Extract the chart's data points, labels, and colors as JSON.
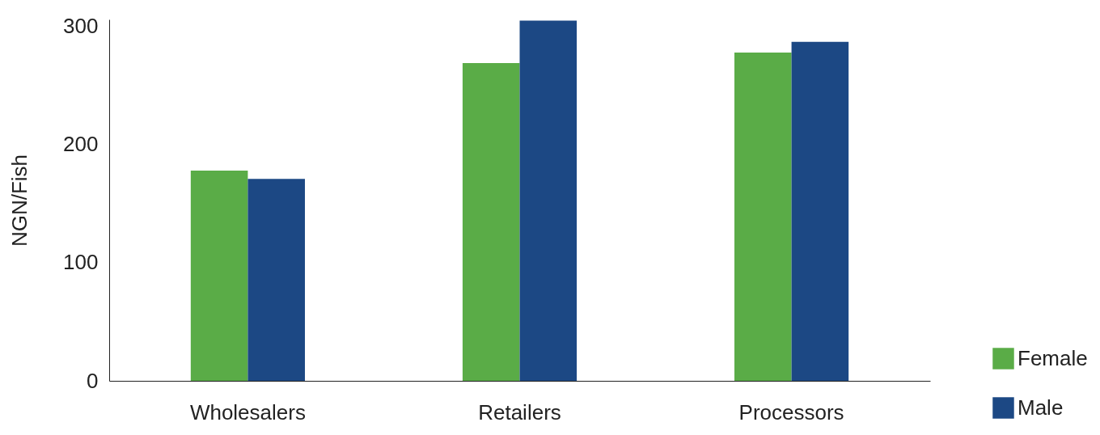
{
  "chart_data": {
    "type": "bar",
    "ylabel": "NGN/Fish",
    "categories": [
      "Wholesalers",
      "Retailers",
      "Processors"
    ],
    "series": [
      {
        "name": "Female",
        "color": "#5aac47",
        "values": [
          178,
          269,
          278
        ]
      },
      {
        "name": "Male",
        "color": "#1c4884",
        "values": [
          171,
          305,
          287
        ]
      }
    ],
    "ylim": [
      0,
      306
    ],
    "yticks": [
      0,
      100,
      200,
      300
    ],
    "grid": false,
    "legend": "bottom right"
  }
}
